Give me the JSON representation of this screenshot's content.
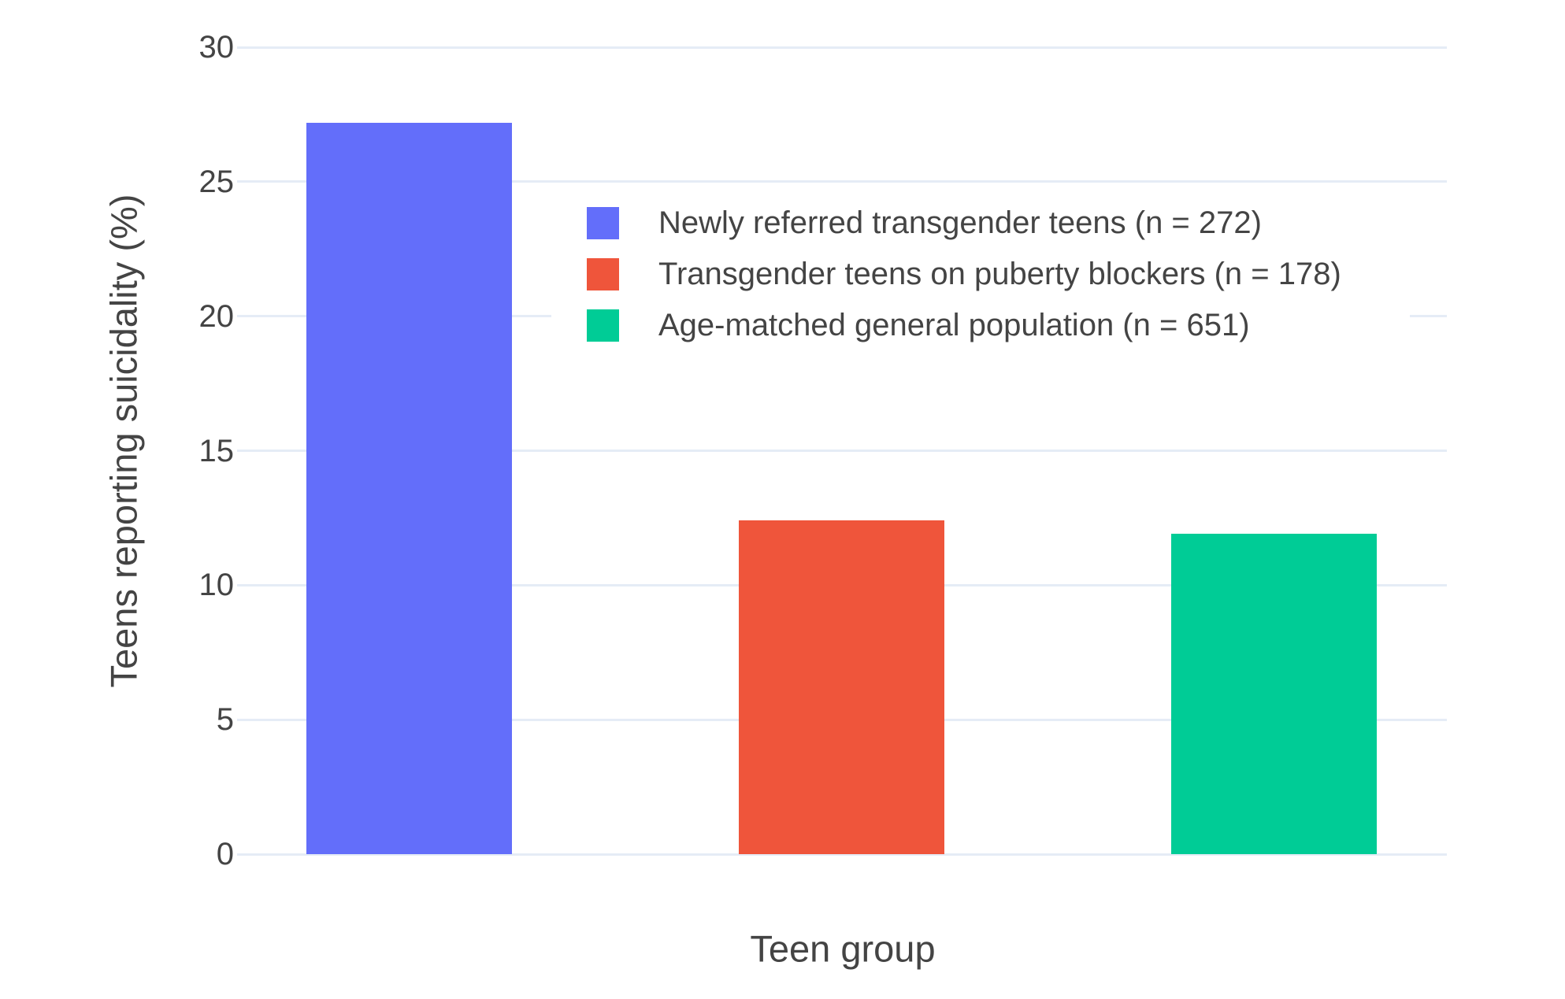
{
  "chart_data": {
    "type": "bar",
    "title": "",
    "xlabel": "Teen group",
    "ylabel": "Teens reporting suicidality (%)",
    "ylim": [
      0,
      30
    ],
    "yticks": [
      0,
      5,
      10,
      15,
      20,
      25,
      30
    ],
    "grid": true,
    "legend_position": "top-right-inside",
    "categories": [
      "Newly referred transgender teens (n = 272)",
      "Transgender teens on puberty blockers (n = 178)",
      "Age-matched general population (n = 651)"
    ],
    "values": [
      27.2,
      12.4,
      11.9
    ],
    "colors": [
      "#636EFA",
      "#EF553B",
      "#00CC96"
    ],
    "bar_names": [
      "newly-referred",
      "puberty-blockers",
      "general-population"
    ]
  },
  "colors": {
    "text": "#444444",
    "gridline": "#E5ECF6",
    "background": "#FFFFFF"
  }
}
